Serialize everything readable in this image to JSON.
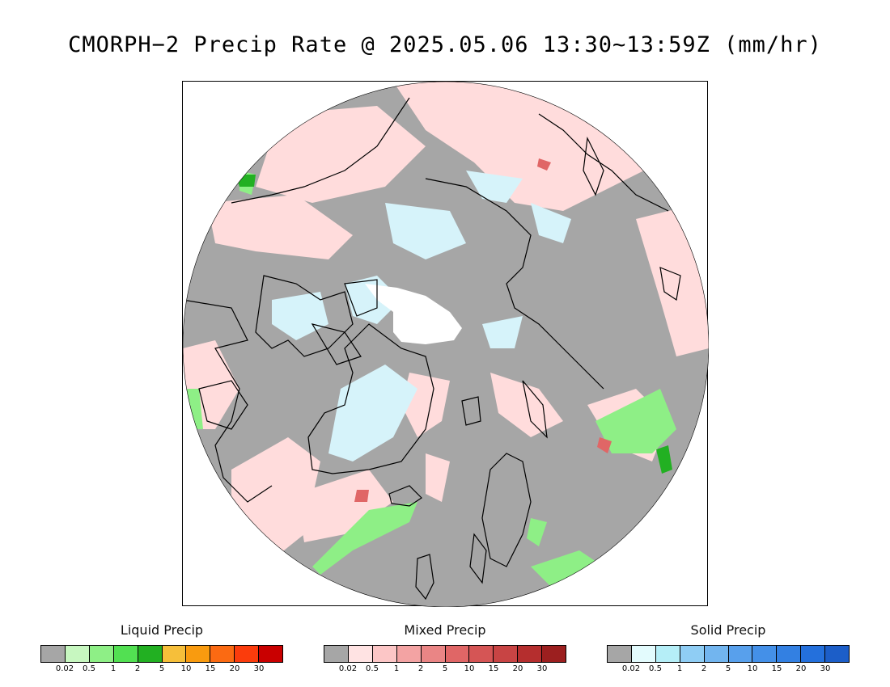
{
  "title": "CMORPH−2 Precip Rate @ 2025.05.06 13:30~13:59Z (mm/hr)",
  "legends": [
    {
      "title": "Liquid Precip",
      "ticks": [
        "0.02",
        "0.5",
        "1",
        "2",
        "5",
        "10",
        "15",
        "20",
        "30"
      ],
      "colors": [
        "#a6a6a6",
        "#c7f7c0",
        "#8eef86",
        "#52e052",
        "#22b022",
        "#f6bf3a",
        "#f99b0f",
        "#fb6a12",
        "#fb3c0c",
        "#c90000"
      ]
    },
    {
      "title": "Mixed Precip",
      "ticks": [
        "0.02",
        "0.5",
        "1",
        "2",
        "5",
        "10",
        "15",
        "20",
        "30"
      ],
      "colors": [
        "#a6a6a6",
        "#ffe3e3",
        "#fcc6c6",
        "#f3a3a3",
        "#ea8585",
        "#e06666",
        "#d55555",
        "#c84444",
        "#b52e2e",
        "#9c1f1f"
      ]
    },
    {
      "title": "Solid Precip",
      "ticks": [
        "0.02",
        "0.5",
        "1",
        "2",
        "5",
        "10",
        "15",
        "20",
        "30"
      ],
      "colors": [
        "#a6a6a6",
        "#e3fbfd",
        "#b5eef7",
        "#8fcdf4",
        "#72b5ef",
        "#58a0ec",
        "#4490e8",
        "#3380e2",
        "#2470dc",
        "#1c5ec8"
      ]
    }
  ],
  "map": {
    "projection": "north polar stereographic",
    "background_color": "#a6a6a6",
    "no_data_color": "#ffffff",
    "liquid_color": "#8eef86",
    "mixed_color": "#ffe0e0",
    "solid_color": "#d6f3fa",
    "coastline_color": "#000000"
  }
}
